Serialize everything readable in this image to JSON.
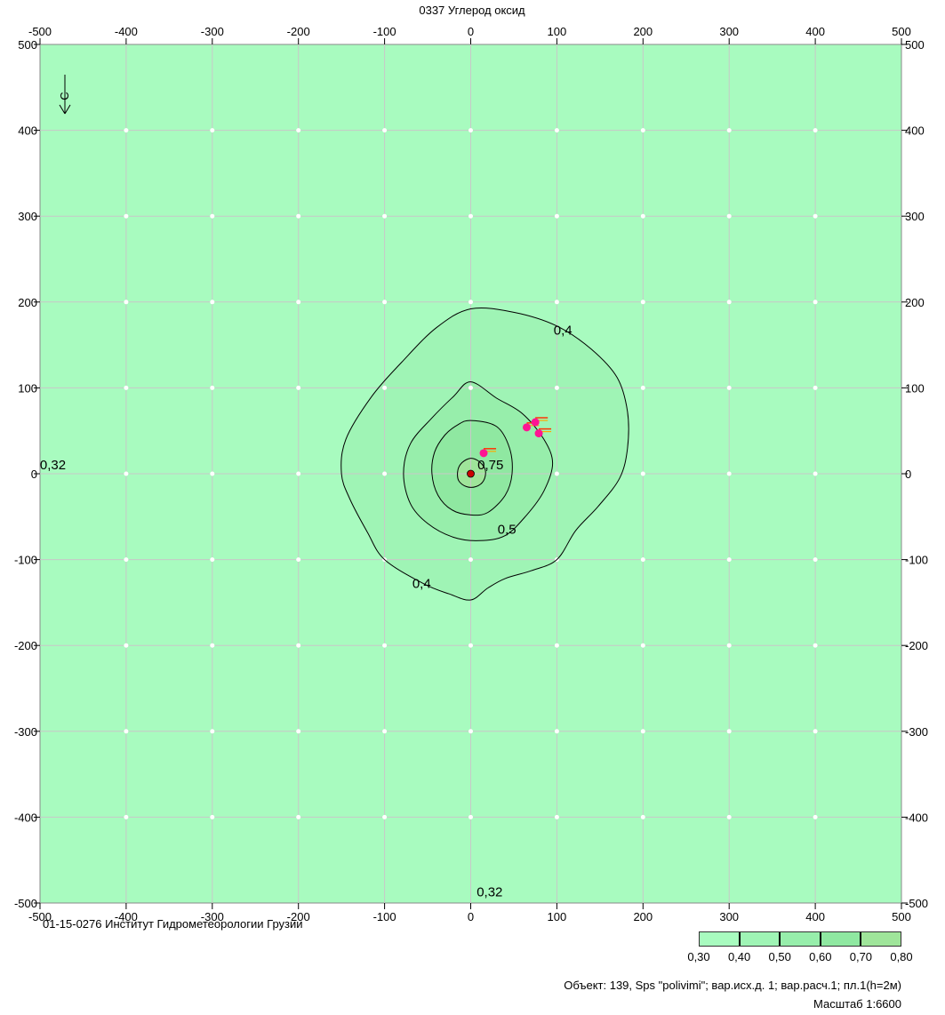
{
  "title": "0337 Углерод оксид",
  "footer_left": "01-15-0276 Институт Гидрометеорологии Грузии",
  "object_info": "Объект: 139, Sps \"polivimi\"; вар.исх.д. 1; вар.расч.1; пл.1(h=2м)",
  "scale": "Масштаб 1:6600",
  "compass_label": "С",
  "colors": {
    "background": "#a8fbbf",
    "level_04": "#9ff4b5",
    "level_05": "#97eeab",
    "level_06": "#8fe8a1",
    "level_07": "#9fe59a",
    "legend": [
      "#a8fbbf",
      "#9ff4b5",
      "#97eeab",
      "#8fe8a1",
      "#9fe59a"
    ],
    "source": "#ff1493",
    "max_point": "#cc0000"
  },
  "legend": {
    "labels": [
      "0,30",
      "0,40",
      "0,50",
      "0,60",
      "0,70",
      "0,80"
    ]
  },
  "chart_data": {
    "type": "contour",
    "title": "0337 Углерод оксид",
    "xlim": [
      -500,
      500
    ],
    "ylim": [
      -500,
      500
    ],
    "xticks": [
      -500,
      -400,
      -300,
      -200,
      -100,
      0,
      100,
      200,
      300,
      400,
      500
    ],
    "yticks": [
      -500,
      -400,
      -300,
      -200,
      -100,
      0,
      100,
      200,
      300,
      400,
      500
    ],
    "grid": true,
    "contours": [
      {
        "label": "0,4",
        "level": 0.4,
        "points": [
          [
            0,
            192
          ],
          [
            50,
            188
          ],
          [
            100,
            172
          ],
          [
            140,
            145
          ],
          [
            170,
            112
          ],
          [
            182,
            72
          ],
          [
            182,
            30
          ],
          [
            173,
            -5
          ],
          [
            148,
            -38
          ],
          [
            122,
            -66
          ],
          [
            100,
            -100
          ],
          [
            70,
            -113
          ],
          [
            40,
            -122
          ],
          [
            20,
            -133
          ],
          [
            0,
            -147
          ],
          [
            -25,
            -140
          ],
          [
            -55,
            -128
          ],
          [
            -100,
            -100
          ],
          [
            -120,
            -68
          ],
          [
            -140,
            -30
          ],
          [
            -150,
            0
          ],
          [
            -145,
            40
          ],
          [
            -115,
            90
          ],
          [
            -80,
            130
          ],
          [
            -40,
            170
          ]
        ]
      },
      {
        "label": "0,5",
        "level": 0.5,
        "points": [
          [
            0,
            107
          ],
          [
            30,
            88
          ],
          [
            60,
            70
          ],
          [
            85,
            40
          ],
          [
            95,
            12
          ],
          [
            85,
            -20
          ],
          [
            65,
            -48
          ],
          [
            40,
            -72
          ],
          [
            10,
            -78
          ],
          [
            -20,
            -74
          ],
          [
            -50,
            -58
          ],
          [
            -70,
            -35
          ],
          [
            -78,
            0
          ],
          [
            -70,
            35
          ],
          [
            -45,
            65
          ],
          [
            -20,
            90
          ]
        ]
      },
      {
        "label": "0,6",
        "level": 0.6,
        "points": [
          [
            0,
            62
          ],
          [
            30,
            55
          ],
          [
            45,
            30
          ],
          [
            48,
            0
          ],
          [
            40,
            -25
          ],
          [
            20,
            -45
          ],
          [
            0,
            -48
          ],
          [
            -22,
            -42
          ],
          [
            -38,
            -25
          ],
          [
            -45,
            0
          ],
          [
            -42,
            25
          ],
          [
            -30,
            45
          ],
          [
            -15,
            57
          ]
        ]
      },
      {
        "label": "0,75",
        "level": 0.75,
        "points": [
          [
            0,
            18
          ],
          [
            10,
            14
          ],
          [
            17,
            4
          ],
          [
            15,
            -8
          ],
          [
            6,
            -15
          ],
          [
            -5,
            -15
          ],
          [
            -14,
            -8
          ],
          [
            -15,
            4
          ],
          [
            -10,
            13
          ]
        ]
      }
    ],
    "contour_labels": [
      {
        "text": "0,4",
        "x": 107,
        "y": 162
      },
      {
        "text": "0,4",
        "x": -57,
        "y": -133
      },
      {
        "text": "0,5",
        "x": 42,
        "y": -70
      },
      {
        "text": "0,75",
        "x": 23,
        "y": 5
      },
      {
        "text": "0,32",
        "x": -485,
        "y": 5
      },
      {
        "text": "0,32",
        "x": 22,
        "y": -492
      }
    ],
    "sources": [
      {
        "x": 15,
        "y": 24
      },
      {
        "x": 65,
        "y": 54
      },
      {
        "x": 75,
        "y": 60
      },
      {
        "x": 79,
        "y": 47
      }
    ],
    "max_point": {
      "x": 0,
      "y": 0
    }
  }
}
